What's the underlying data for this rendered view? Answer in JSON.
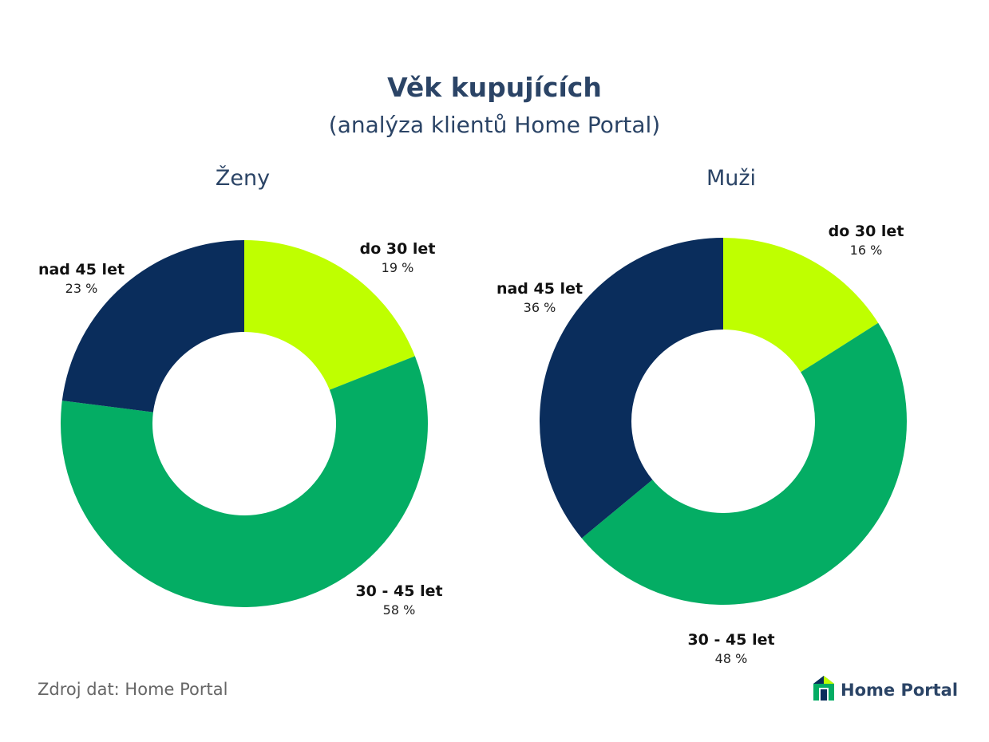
{
  "header": {
    "title": "Věk kupujících",
    "subtitle": "(analýza klientů Home Portal)"
  },
  "colors": {
    "do_30": "#bfff00",
    "30_45": "#04ad64",
    "nad_45": "#0a2d5c",
    "text": "#2b4466"
  },
  "chart_data": [
    {
      "type": "pie",
      "title": "Ženy",
      "donut": true,
      "categories": [
        "do 30 let",
        "30 - 45 let",
        "nad 45 let"
      ],
      "values": [
        19,
        58,
        23
      ],
      "value_labels": [
        "19 %",
        "58 %",
        "23 %"
      ]
    },
    {
      "type": "pie",
      "title": "Muži",
      "donut": true,
      "categories": [
        "do 30 let",
        "30 - 45 let",
        "nad 45 let"
      ],
      "values": [
        16,
        48,
        36
      ],
      "value_labels": [
        "16 %",
        "48 %",
        "36 %"
      ]
    }
  ],
  "footer": {
    "source": "Zdroj dat: Home Portal",
    "brand": "Home Portal",
    "brand_icon": "house-logo-icon"
  }
}
